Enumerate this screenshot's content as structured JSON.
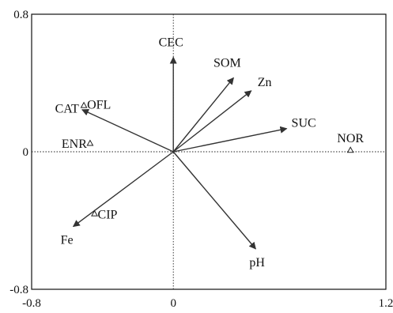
{
  "chart_data": {
    "type": "scatter",
    "title": "",
    "xlabel": "",
    "ylabel": "",
    "xlim": [
      -0.8,
      1.2
    ],
    "ylim": [
      -0.8,
      0.8
    ],
    "x_ticks": [
      "-0.8",
      "0",
      "1.2"
    ],
    "y_ticks": [
      "0.8",
      "0",
      "-0.8"
    ],
    "grid": false,
    "zero_lines": true,
    "arrows": [
      {
        "label": "CEC",
        "x": 0.0,
        "y": 0.55
      },
      {
        "label": "SOM",
        "x": 0.34,
        "y": 0.43
      },
      {
        "label": "Zn",
        "x": 0.44,
        "y": 0.355
      },
      {
        "label": "SUC",
        "x": 0.64,
        "y": 0.135
      },
      {
        "label": "CAT",
        "x": -0.515,
        "y": 0.245
      },
      {
        "label": "Fe",
        "x": -0.565,
        "y": -0.435
      },
      {
        "label": "pH",
        "x": 0.465,
        "y": -0.565
      }
    ],
    "points": [
      {
        "label": "OFL",
        "x": -0.505,
        "y": 0.27
      },
      {
        "label": "ENR",
        "x": -0.47,
        "y": 0.05
      },
      {
        "label": "CIP",
        "x": -0.445,
        "y": -0.36
      },
      {
        "label": "NOR",
        "x": 1.0,
        "y": 0.01
      }
    ],
    "marker": "open-triangle"
  }
}
